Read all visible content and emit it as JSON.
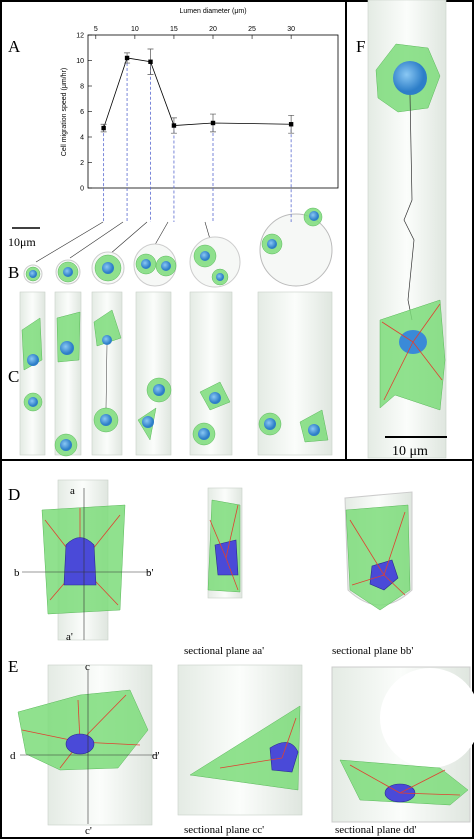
{
  "panel_labels": [
    "A",
    "B",
    "C",
    "D",
    "E",
    "F"
  ],
  "chart_data": {
    "type": "line",
    "xlabel": "Lumen diameter (μm)",
    "ylabel": "Cell migration speed (μm/hr)",
    "x": [
      6,
      9,
      12,
      15,
      20,
      30
    ],
    "series": [
      {
        "values": [
          4.7,
          10.2,
          9.9,
          4.9,
          5.1,
          5.0
        ],
        "errors": [
          0.3,
          0.4,
          1.0,
          0.6,
          0.7,
          0.7
        ],
        "color": "#000000"
      }
    ],
    "xlim": [
      4,
      36
    ],
    "ylim": [
      0,
      12
    ],
    "xticks": [
      5,
      10,
      15,
      20,
      25,
      30
    ],
    "yticks": [
      0,
      2,
      4,
      6,
      8,
      10,
      12
    ]
  },
  "scale_bars": [
    "10μm",
    "10 μm"
  ],
  "axis_marks": [
    "a",
    "a'",
    "b",
    "b'",
    "c",
    "c'",
    "d",
    "d'"
  ],
  "captions": [
    "sectional plane aa'",
    "sectional plane bb'",
    "sectional plane cc'",
    "sectional plane dd'"
  ]
}
